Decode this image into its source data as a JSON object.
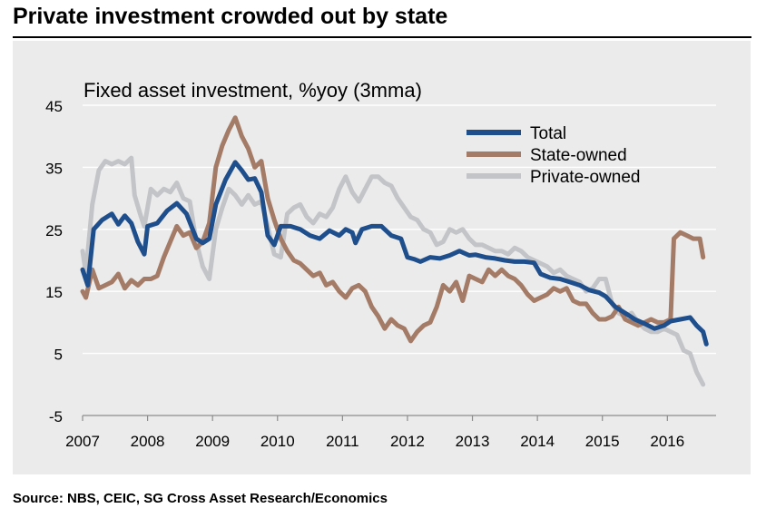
{
  "header": {
    "title": "Private investment crowded out by state",
    "source": "Source: NBS, CEIC, SG Cross Asset Research/Economics"
  },
  "chart_data": {
    "type": "line",
    "subtitle": "Fixed asset investment, %yoy (3mma)",
    "xlabel": "",
    "ylabel": "",
    "xlim": [
      2007,
      2016.75
    ],
    "ylim": [
      -5,
      45
    ],
    "yticks": [
      45,
      35,
      25,
      15,
      5,
      -5
    ],
    "xticks": [
      "2007",
      "2008",
      "2009",
      "2010",
      "2011",
      "2012",
      "2013",
      "2014",
      "2015",
      "2016"
    ],
    "grid": "horizontal",
    "legend": "top-right",
    "colors": {
      "Total": "#1f4e8c",
      "State-owned": "#a47b66",
      "Private-owned": "#c3c4c8"
    },
    "series": [
      {
        "name": "Total",
        "points": [
          [
            2007.0,
            18.5
          ],
          [
            2007.08,
            16.0
          ],
          [
            2007.17,
            25.0
          ],
          [
            2007.3,
            26.5
          ],
          [
            2007.45,
            27.5
          ],
          [
            2007.55,
            25.8
          ],
          [
            2007.65,
            27.2
          ],
          [
            2007.75,
            26.0
          ],
          [
            2007.85,
            23.0
          ],
          [
            2007.95,
            21.0
          ],
          [
            2008.0,
            25.5
          ],
          [
            2008.15,
            26.0
          ],
          [
            2008.3,
            28.0
          ],
          [
            2008.45,
            29.2
          ],
          [
            2008.6,
            27.5
          ],
          [
            2008.75,
            23.5
          ],
          [
            2008.85,
            22.8
          ],
          [
            2008.95,
            23.5
          ],
          [
            2009.05,
            29.0
          ],
          [
            2009.2,
            33.0
          ],
          [
            2009.35,
            35.8
          ],
          [
            2009.45,
            34.5
          ],
          [
            2009.55,
            33.0
          ],
          [
            2009.65,
            33.2
          ],
          [
            2009.75,
            31.0
          ],
          [
            2009.85,
            24.0
          ],
          [
            2009.95,
            22.5
          ],
          [
            2010.05,
            25.5
          ],
          [
            2010.2,
            25.5
          ],
          [
            2010.35,
            25.0
          ],
          [
            2010.5,
            24.0
          ],
          [
            2010.65,
            23.5
          ],
          [
            2010.8,
            24.8
          ],
          [
            2010.95,
            24.0
          ],
          [
            2011.05,
            25.0
          ],
          [
            2011.15,
            24.5
          ],
          [
            2011.2,
            22.8
          ],
          [
            2011.3,
            25.0
          ],
          [
            2011.45,
            25.5
          ],
          [
            2011.6,
            25.5
          ],
          [
            2011.75,
            24.0
          ],
          [
            2011.9,
            23.5
          ],
          [
            2012.0,
            20.5
          ],
          [
            2012.1,
            20.2
          ],
          [
            2012.2,
            19.8
          ],
          [
            2012.35,
            20.5
          ],
          [
            2012.5,
            20.3
          ],
          [
            2012.65,
            20.8
          ],
          [
            2012.8,
            21.5
          ],
          [
            2012.95,
            20.8
          ],
          [
            2013.05,
            20.9
          ],
          [
            2013.2,
            20.5
          ],
          [
            2013.35,
            20.3
          ],
          [
            2013.5,
            20.0
          ],
          [
            2013.65,
            19.8
          ],
          [
            2013.8,
            19.8
          ],
          [
            2013.95,
            19.6
          ],
          [
            2014.05,
            17.8
          ],
          [
            2014.2,
            17.2
          ],
          [
            2014.35,
            17.0
          ],
          [
            2014.5,
            16.5
          ],
          [
            2014.65,
            16.0
          ],
          [
            2014.8,
            15.2
          ],
          [
            2014.95,
            14.8
          ],
          [
            2015.05,
            14.2
          ],
          [
            2015.2,
            12.5
          ],
          [
            2015.35,
            11.5
          ],
          [
            2015.5,
            10.5
          ],
          [
            2015.65,
            9.8
          ],
          [
            2015.8,
            9.0
          ],
          [
            2015.95,
            9.5
          ],
          [
            2016.05,
            10.2
          ],
          [
            2016.2,
            10.5
          ],
          [
            2016.35,
            10.8
          ],
          [
            2016.45,
            9.5
          ],
          [
            2016.55,
            8.5
          ],
          [
            2016.6,
            6.5
          ]
        ]
      },
      {
        "name": "State-owned",
        "points": [
          [
            2007.0,
            15.0
          ],
          [
            2007.05,
            14.0
          ],
          [
            2007.15,
            18.5
          ],
          [
            2007.25,
            15.5
          ],
          [
            2007.35,
            16.0
          ],
          [
            2007.45,
            16.5
          ],
          [
            2007.55,
            17.8
          ],
          [
            2007.65,
            15.5
          ],
          [
            2007.75,
            16.8
          ],
          [
            2007.85,
            16.0
          ],
          [
            2007.95,
            17.0
          ],
          [
            2008.05,
            17.0
          ],
          [
            2008.15,
            17.5
          ],
          [
            2008.25,
            20.5
          ],
          [
            2008.35,
            23.0
          ],
          [
            2008.45,
            25.5
          ],
          [
            2008.55,
            24.0
          ],
          [
            2008.65,
            24.5
          ],
          [
            2008.75,
            22.0
          ],
          [
            2008.85,
            23.0
          ],
          [
            2008.95,
            26.0
          ],
          [
            2009.05,
            35.0
          ],
          [
            2009.15,
            38.5
          ],
          [
            2009.25,
            41.0
          ],
          [
            2009.35,
            43.0
          ],
          [
            2009.45,
            40.0
          ],
          [
            2009.55,
            38.0
          ],
          [
            2009.65,
            35.0
          ],
          [
            2009.75,
            36.0
          ],
          [
            2009.85,
            30.0
          ],
          [
            2009.95,
            26.5
          ],
          [
            2010.05,
            23.5
          ],
          [
            2010.15,
            21.5
          ],
          [
            2010.25,
            20.0
          ],
          [
            2010.35,
            19.5
          ],
          [
            2010.45,
            18.5
          ],
          [
            2010.55,
            17.5
          ],
          [
            2010.65,
            18.0
          ],
          [
            2010.75,
            16.0
          ],
          [
            2010.85,
            16.5
          ],
          [
            2010.95,
            15.0
          ],
          [
            2011.05,
            14.0
          ],
          [
            2011.15,
            15.5
          ],
          [
            2011.25,
            16.0
          ],
          [
            2011.35,
            15.0
          ],
          [
            2011.45,
            12.5
          ],
          [
            2011.55,
            11.0
          ],
          [
            2011.65,
            9.0
          ],
          [
            2011.75,
            10.5
          ],
          [
            2011.85,
            9.5
          ],
          [
            2011.95,
            9.0
          ],
          [
            2012.05,
            7.0
          ],
          [
            2012.15,
            8.5
          ],
          [
            2012.25,
            9.5
          ],
          [
            2012.35,
            10.0
          ],
          [
            2012.45,
            12.5
          ],
          [
            2012.55,
            16.0
          ],
          [
            2012.65,
            15.0
          ],
          [
            2012.75,
            16.5
          ],
          [
            2012.85,
            13.5
          ],
          [
            2012.95,
            17.5
          ],
          [
            2013.05,
            17.0
          ],
          [
            2013.15,
            16.5
          ],
          [
            2013.25,
            18.5
          ],
          [
            2013.35,
            17.5
          ],
          [
            2013.45,
            18.5
          ],
          [
            2013.55,
            17.5
          ],
          [
            2013.65,
            17.0
          ],
          [
            2013.75,
            16.0
          ],
          [
            2013.85,
            14.5
          ],
          [
            2013.95,
            13.5
          ],
          [
            2014.05,
            14.0
          ],
          [
            2014.15,
            14.5
          ],
          [
            2014.25,
            15.5
          ],
          [
            2014.35,
            15.0
          ],
          [
            2014.45,
            15.5
          ],
          [
            2014.55,
            13.5
          ],
          [
            2014.65,
            13.0
          ],
          [
            2014.75,
            13.0
          ],
          [
            2014.85,
            11.5
          ],
          [
            2014.95,
            10.5
          ],
          [
            2015.05,
            10.5
          ],
          [
            2015.15,
            11.0
          ],
          [
            2015.25,
            12.5
          ],
          [
            2015.35,
            10.5
          ],
          [
            2015.45,
            10.0
          ],
          [
            2015.55,
            9.5
          ],
          [
            2015.65,
            10.0
          ],
          [
            2015.75,
            10.5
          ],
          [
            2015.85,
            10.0
          ],
          [
            2015.95,
            10.0
          ],
          [
            2016.05,
            10.5
          ],
          [
            2016.1,
            23.5
          ],
          [
            2016.2,
            24.5
          ],
          [
            2016.3,
            24.0
          ],
          [
            2016.4,
            23.5
          ],
          [
            2016.5,
            23.5
          ],
          [
            2016.55,
            20.5
          ]
        ]
      },
      {
        "name": "Private-owned",
        "points": [
          [
            2007.0,
            21.5
          ],
          [
            2007.05,
            18.0
          ],
          [
            2007.15,
            29.0
          ],
          [
            2007.25,
            34.5
          ],
          [
            2007.35,
            36.0
          ],
          [
            2007.45,
            35.5
          ],
          [
            2007.55,
            36.0
          ],
          [
            2007.65,
            35.5
          ],
          [
            2007.75,
            36.5
          ],
          [
            2007.8,
            30.5
          ],
          [
            2007.9,
            27.0
          ],
          [
            2007.95,
            25.5
          ],
          [
            2008.05,
            31.5
          ],
          [
            2008.15,
            30.5
          ],
          [
            2008.25,
            31.5
          ],
          [
            2008.35,
            31.0
          ],
          [
            2008.45,
            32.5
          ],
          [
            2008.55,
            30.0
          ],
          [
            2008.65,
            29.5
          ],
          [
            2008.75,
            23.0
          ],
          [
            2008.85,
            19.0
          ],
          [
            2008.95,
            17.0
          ],
          [
            2009.05,
            25.0
          ],
          [
            2009.15,
            28.5
          ],
          [
            2009.25,
            31.5
          ],
          [
            2009.35,
            30.5
          ],
          [
            2009.45,
            29.0
          ],
          [
            2009.55,
            30.5
          ],
          [
            2009.65,
            29.0
          ],
          [
            2009.75,
            29.5
          ],
          [
            2009.85,
            25.5
          ],
          [
            2009.95,
            21.0
          ],
          [
            2010.05,
            20.5
          ],
          [
            2010.15,
            27.5
          ],
          [
            2010.25,
            28.5
          ],
          [
            2010.35,
            29.0
          ],
          [
            2010.45,
            27.0
          ],
          [
            2010.55,
            26.0
          ],
          [
            2010.65,
            27.5
          ],
          [
            2010.75,
            27.0
          ],
          [
            2010.85,
            28.5
          ],
          [
            2010.95,
            31.5
          ],
          [
            2011.05,
            33.5
          ],
          [
            2011.15,
            31.0
          ],
          [
            2011.25,
            29.5
          ],
          [
            2011.35,
            31.5
          ],
          [
            2011.45,
            33.5
          ],
          [
            2011.55,
            33.5
          ],
          [
            2011.65,
            32.5
          ],
          [
            2011.75,
            32.0
          ],
          [
            2011.85,
            30.0
          ],
          [
            2011.95,
            28.5
          ],
          [
            2012.05,
            27.0
          ],
          [
            2012.15,
            26.5
          ],
          [
            2012.25,
            25.0
          ],
          [
            2012.35,
            24.5
          ],
          [
            2012.45,
            22.5
          ],
          [
            2012.55,
            23.0
          ],
          [
            2012.65,
            25.0
          ],
          [
            2012.75,
            24.5
          ],
          [
            2012.85,
            25.0
          ],
          [
            2012.95,
            23.5
          ],
          [
            2013.05,
            22.5
          ],
          [
            2013.15,
            22.5
          ],
          [
            2013.25,
            22.0
          ],
          [
            2013.35,
            21.5
          ],
          [
            2013.45,
            21.5
          ],
          [
            2013.55,
            21.0
          ],
          [
            2013.65,
            22.0
          ],
          [
            2013.75,
            21.5
          ],
          [
            2013.85,
            20.5
          ],
          [
            2013.95,
            20.0
          ],
          [
            2014.05,
            19.5
          ],
          [
            2014.15,
            19.0
          ],
          [
            2014.25,
            18.0
          ],
          [
            2014.35,
            18.5
          ],
          [
            2014.45,
            17.5
          ],
          [
            2014.55,
            17.0
          ],
          [
            2014.65,
            16.5
          ],
          [
            2014.75,
            15.0
          ],
          [
            2014.85,
            15.5
          ],
          [
            2014.95,
            17.0
          ],
          [
            2015.05,
            17.0
          ],
          [
            2015.15,
            13.0
          ],
          [
            2015.25,
            11.5
          ],
          [
            2015.35,
            11.0
          ],
          [
            2015.45,
            11.5
          ],
          [
            2015.55,
            10.0
          ],
          [
            2015.65,
            9.0
          ],
          [
            2015.75,
            8.5
          ],
          [
            2015.85,
            8.5
          ],
          [
            2015.95,
            9.0
          ],
          [
            2016.05,
            8.5
          ],
          [
            2016.15,
            8.0
          ],
          [
            2016.25,
            5.5
          ],
          [
            2016.35,
            5.0
          ],
          [
            2016.45,
            2.0
          ],
          [
            2016.55,
            0.0
          ]
        ]
      }
    ]
  }
}
